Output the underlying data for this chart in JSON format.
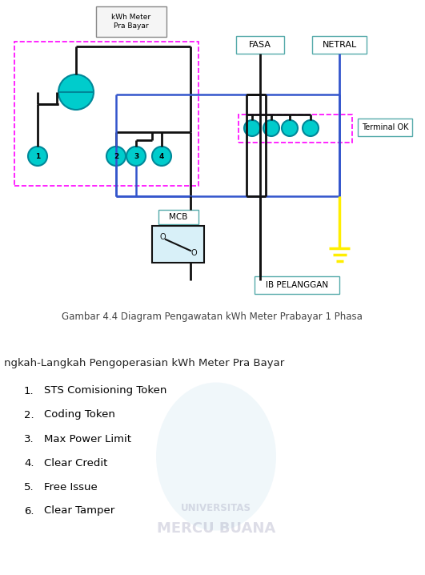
{
  "title": "Gambar 4.4 Diagram Pengawatan kWh Meter Prabayar 1 Phasa",
  "subtitle": "ngkah-Langkah Pengoperasian kWh Meter Pra Bayar",
  "list_items": [
    "STS Comisioning Token",
    "Coding Token",
    "Max Power Limit",
    "Clear Credit",
    "Free Issue",
    "Clear Tamper"
  ],
  "kwh_box_label": "kWh Meter\nPra Bayar",
  "fasa_label": "FASA",
  "netral_label": "NETRAL",
  "terminal_label": "Terminal OK",
  "mcb_label": "MCB",
  "ib_label": "IB PELANGGAN",
  "bg_color": "#ffffff",
  "pink_color": "#ff00ff",
  "blue_color": "#3355cc",
  "black_color": "#111111",
  "yellow_color": "#ffee00",
  "teal_color": "#00cccc",
  "teal_dark": "#008899",
  "label_border": "#55aaaa",
  "kwh_border": "#888888",
  "mcb_fill": "#d8f0f8"
}
